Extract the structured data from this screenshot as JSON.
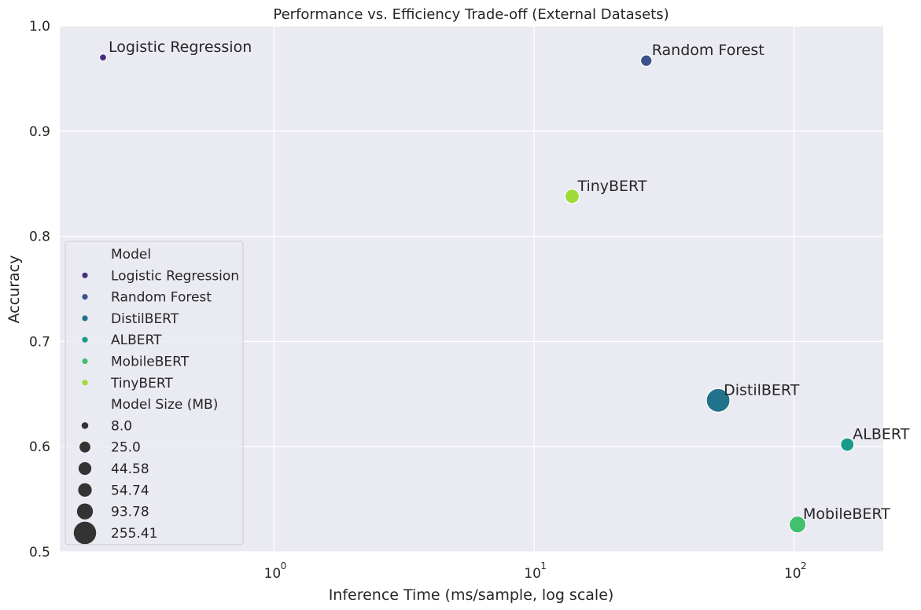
{
  "chart_data": {
    "type": "scatter",
    "title": "Performance vs. Efficiency Trade-off (External Datasets)",
    "xlabel": "Inference Time (ms/sample, log scale)",
    "ylabel": "Accuracy",
    "x_scale": "log",
    "xlim": [
      0.15,
      220
    ],
    "ylim": [
      0.5,
      1.0
    ],
    "grid": true,
    "legend_position": "lower-left",
    "x_ticks": [
      {
        "value": 1,
        "base": "10",
        "exp": "0"
      },
      {
        "value": 10,
        "base": "10",
        "exp": "1"
      },
      {
        "value": 100,
        "base": "10",
        "exp": "2"
      }
    ],
    "y_ticks": [
      {
        "value": 0.5,
        "label": "0.5"
      },
      {
        "value": 0.6,
        "label": "0.6"
      },
      {
        "value": 0.7,
        "label": "0.7"
      },
      {
        "value": 0.8,
        "label": "0.8"
      },
      {
        "value": 0.9,
        "label": "0.9"
      },
      {
        "value": 1.0,
        "label": "1.0"
      }
    ],
    "points": [
      {
        "model": "Logistic Regression",
        "x": 0.22,
        "y": 0.97,
        "size_mb": 8.0,
        "color": "#472d7b"
      },
      {
        "model": "Random Forest",
        "x": 27,
        "y": 0.967,
        "size_mb": 25.0,
        "color": "#3b528b"
      },
      {
        "model": "DistilBERT",
        "x": 51,
        "y": 0.644,
        "size_mb": 255.41,
        "color": "#21728b"
      },
      {
        "model": "ALBERT",
        "x": 160,
        "y": 0.602,
        "size_mb": 44.58,
        "color": "#1a9a8a"
      },
      {
        "model": "MobileBERT",
        "x": 103,
        "y": 0.526,
        "size_mb": 93.78,
        "color": "#44bf70"
      },
      {
        "model": "TinyBERT",
        "x": 14,
        "y": 0.838,
        "size_mb": 54.74,
        "color": "#9fda3a"
      }
    ],
    "legend": {
      "hue_title": "Model",
      "hue_items": [
        {
          "label": "Logistic Regression",
          "color": "#472d7b"
        },
        {
          "label": "Random Forest",
          "color": "#3b528b"
        },
        {
          "label": "DistilBERT",
          "color": "#21728b"
        },
        {
          "label": "ALBERT",
          "color": "#1a9a8a"
        },
        {
          "label": "MobileBERT",
          "color": "#44bf70"
        },
        {
          "label": "TinyBERT",
          "color": "#9fda3a"
        }
      ],
      "size_title": "Model Size (MB)",
      "size_items": [
        {
          "label": "8.0",
          "value": 8.0
        },
        {
          "label": "25.0",
          "value": 25.0
        },
        {
          "label": "44.58",
          "value": 44.58
        },
        {
          "label": "54.74",
          "value": 54.74
        },
        {
          "label": "93.78",
          "value": 93.78
        },
        {
          "label": "255.41",
          "value": 255.41
        }
      ]
    },
    "colors": {
      "plot_background": "#eaeaf2",
      "grid": "#ffffff",
      "text": "#262626",
      "size_legend_marker": "#333333"
    }
  }
}
